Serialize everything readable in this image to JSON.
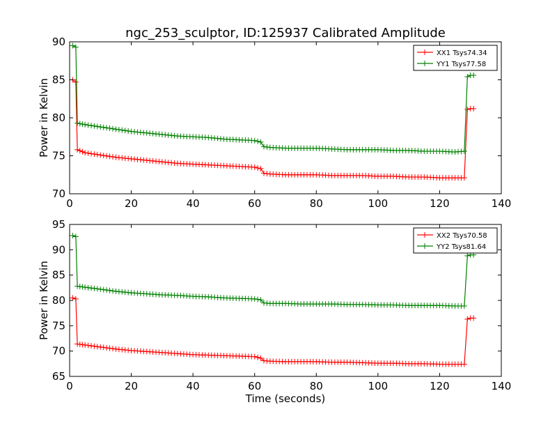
{
  "title": "ngc_253_sculptor, ID:125937 Calibrated Amplitude",
  "chart_data": [
    {
      "type": "line",
      "title": "ngc_253_sculptor, ID:125937 Calibrated Amplitude",
      "xlabel": "",
      "ylabel": "Power in Kelvin",
      "xlim": [
        0,
        140
      ],
      "ylim": [
        70,
        90
      ],
      "xticks": [
        0,
        20,
        40,
        60,
        80,
        100,
        120,
        140
      ],
      "yticks": [
        70,
        75,
        80,
        85,
        90
      ],
      "grid": false,
      "legend": "top-right",
      "series": [
        {
          "name": "XX1 Tsys74.34",
          "color": "#ff0000",
          "marker": "+",
          "x": [
            1,
            2,
            2.5,
            5,
            10,
            15,
            20,
            25,
            30,
            35,
            40,
            45,
            50,
            55,
            60,
            62,
            63,
            65,
            70,
            75,
            80,
            85,
            90,
            95,
            100,
            105,
            110,
            115,
            120,
            125,
            128,
            129,
            130,
            131
          ],
          "y": [
            85,
            84.7,
            75.8,
            75.4,
            75.1,
            74.8,
            74.6,
            74.4,
            74.2,
            74.0,
            73.9,
            73.8,
            73.7,
            73.6,
            73.5,
            73.3,
            72.7,
            72.6,
            72.5,
            72.5,
            72.5,
            72.4,
            72.4,
            72.4,
            72.3,
            72.3,
            72.2,
            72.2,
            72.1,
            72.1,
            72.1,
            81.1,
            81.2,
            81.2
          ]
        },
        {
          "name": "YY1 Tsys77.58",
          "color": "#008000",
          "marker": "+",
          "x": [
            1,
            2,
            2.5,
            5,
            10,
            15,
            20,
            25,
            30,
            35,
            40,
            45,
            50,
            55,
            60,
            62,
            63,
            65,
            70,
            75,
            80,
            85,
            90,
            95,
            100,
            105,
            110,
            115,
            120,
            125,
            128,
            129,
            130,
            131
          ],
          "y": [
            89.5,
            89.3,
            79.3,
            79.1,
            78.8,
            78.5,
            78.2,
            78.0,
            77.8,
            77.6,
            77.5,
            77.4,
            77.2,
            77.1,
            77.0,
            76.8,
            76.2,
            76.1,
            76.0,
            76.0,
            76.0,
            75.9,
            75.8,
            75.8,
            75.8,
            75.7,
            75.7,
            75.6,
            75.6,
            75.5,
            75.6,
            85.4,
            85.6,
            85.6
          ]
        }
      ]
    },
    {
      "type": "line",
      "title": "",
      "xlabel": "Time (seconds)",
      "ylabel": "Power in Kelvin",
      "xlim": [
        0,
        140
      ],
      "ylim": [
        65,
        95
      ],
      "xticks": [
        0,
        20,
        40,
        60,
        80,
        100,
        120,
        140
      ],
      "yticks": [
        65,
        70,
        75,
        80,
        85,
        90,
        95
      ],
      "grid": false,
      "legend": "top-right",
      "series": [
        {
          "name": "XX2 Tsys70.58",
          "color": "#ff0000",
          "marker": "+",
          "x": [
            1,
            2,
            2.5,
            5,
            10,
            15,
            20,
            25,
            30,
            35,
            40,
            45,
            50,
            55,
            60,
            62,
            63,
            65,
            70,
            75,
            80,
            85,
            90,
            95,
            100,
            105,
            110,
            115,
            120,
            125,
            128,
            129,
            130,
            131
          ],
          "y": [
            80.5,
            80.3,
            71.4,
            71.2,
            70.8,
            70.4,
            70.1,
            69.9,
            69.7,
            69.5,
            69.3,
            69.2,
            69.1,
            69.0,
            68.9,
            68.6,
            68.1,
            68.0,
            67.9,
            67.9,
            67.9,
            67.8,
            67.8,
            67.7,
            67.6,
            67.6,
            67.5,
            67.5,
            67.4,
            67.4,
            67.4,
            76.3,
            76.5,
            76.5
          ]
        },
        {
          "name": "YY2 Tsys81.64",
          "color": "#008000",
          "marker": "+",
          "x": [
            1,
            2,
            2.5,
            5,
            10,
            15,
            20,
            25,
            30,
            35,
            40,
            45,
            50,
            55,
            60,
            62,
            63,
            65,
            70,
            75,
            80,
            85,
            90,
            95,
            100,
            105,
            110,
            115,
            120,
            125,
            128,
            129,
            130,
            131
          ],
          "y": [
            92.8,
            92.6,
            82.8,
            82.6,
            82.2,
            81.8,
            81.5,
            81.3,
            81.1,
            81.0,
            80.8,
            80.7,
            80.5,
            80.4,
            80.3,
            80.1,
            79.5,
            79.4,
            79.4,
            79.3,
            79.3,
            79.3,
            79.2,
            79.2,
            79.1,
            79.1,
            79.0,
            79.0,
            79.0,
            78.9,
            78.9,
            88.8,
            89.0,
            89.0
          ]
        }
      ]
    }
  ]
}
